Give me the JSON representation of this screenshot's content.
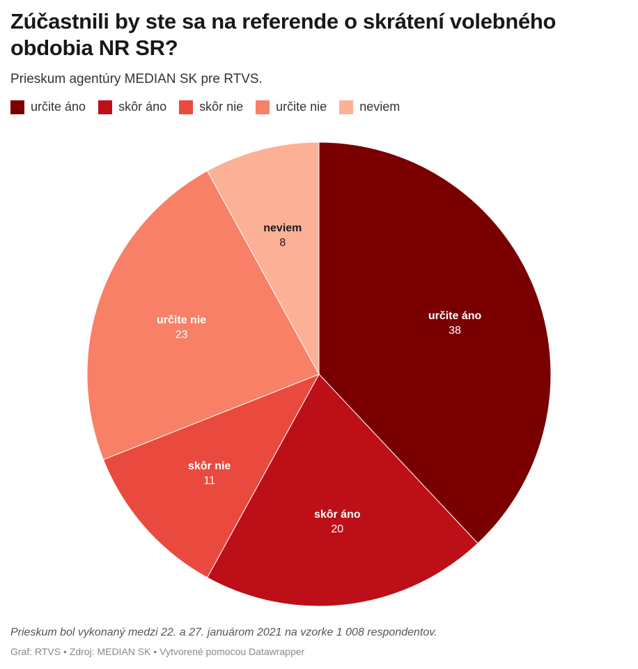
{
  "title": "Zúčastnili by ste sa na referende o skrátení volebného obdobia NR SR?",
  "subtitle": "Prieskum agentúry MEDIAN SK pre RTVS.",
  "notes": "Prieskum bol vykonaný medzi 22. a 27. januárom 2021 na vzorke 1 008 respondentov.",
  "footer": "Graf: RTVS • Zdroj: MEDIAN SK • Vytvorené pomocou Datawrapper",
  "chart_data": {
    "type": "pie",
    "title": "Zúčastnili by ste sa na referende o skrátení volebného obdobia NR SR?",
    "legend_position": "top-left",
    "slices": [
      {
        "label": "určite áno",
        "value": 38,
        "color": "#7a0000",
        "label_color": "#ffffff"
      },
      {
        "label": "skôr áno",
        "value": 20,
        "color": "#bd0f18",
        "label_color": "#ffffff"
      },
      {
        "label": "skôr nie",
        "value": 11,
        "color": "#ea4a3d",
        "label_color": "#ffffff"
      },
      {
        "label": "určite nie",
        "value": 23,
        "color": "#f88066",
        "label_color": "#ffffff"
      },
      {
        "label": "neviem",
        "value": 8,
        "color": "#fcb196",
        "label_color": "#1a1a1a"
      }
    ]
  }
}
